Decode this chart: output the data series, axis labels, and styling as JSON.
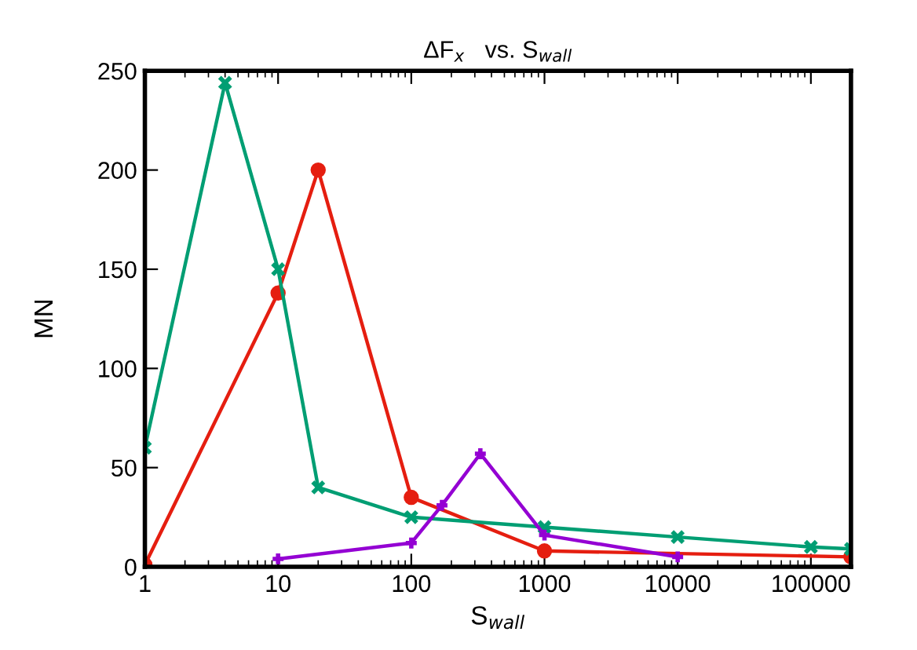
{
  "chart_data": {
    "type": "line",
    "title": "ΔF$_{x}$   vs. S$_{wall}$",
    "xlabel": "S$_{wall}$",
    "ylabel": "MN",
    "log": "x",
    "grid": false,
    "legend": false,
    "line_style": "solid",
    "xlim": [
      1,
      200000
    ],
    "xticks": [
      1,
      10,
      100,
      1000,
      10000,
      100000
    ],
    "ylim": [
      0,
      250
    ],
    "yticks": [
      0,
      50,
      100,
      150,
      200,
      250
    ],
    "series": [
      {
        "color": "#e51e10",
        "marker": "circle",
        "x": [
          1,
          10,
          20,
          100,
          1000,
          200000
        ],
        "values": [
          1,
          138,
          200,
          35,
          8,
          5
        ]
      },
      {
        "color": "#009e73",
        "marker": "cross",
        "x": [
          1,
          4,
          10,
          20,
          100,
          1000,
          10000,
          100000,
          200000
        ],
        "values": [
          60,
          244,
          150,
          40,
          25,
          20,
          15,
          10,
          9
        ]
      },
      {
        "color": "#9400d3",
        "marker": "cross",
        "x": [
          10,
          100,
          170,
          330,
          1000,
          10000
        ],
        "values": [
          4,
          12,
          31,
          57,
          16,
          5
        ]
      }
    ]
  }
}
